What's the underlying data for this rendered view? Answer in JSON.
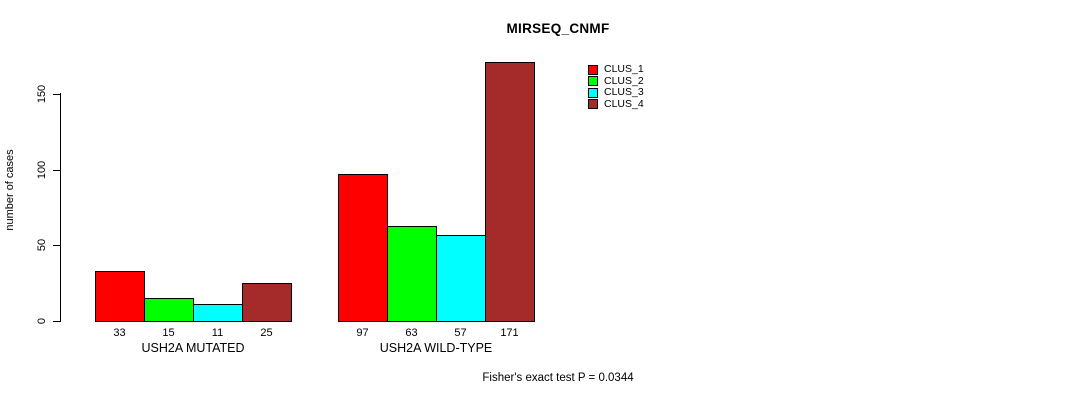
{
  "title": "MIRSEQ_CNMF",
  "y_axis": {
    "label": "number of cases"
  },
  "caption": "Fisher's exact test P = 0.0344",
  "chart_data": {
    "type": "bar",
    "title": "MIRSEQ_CNMF",
    "xlabel": "",
    "ylabel": "number of cases",
    "categories": [
      "USH2A MUTATED",
      "USH2A WILD-TYPE"
    ],
    "series": [
      {
        "name": "CLUS_1",
        "color": "#FF0000",
        "values": [
          33,
          97
        ]
      },
      {
        "name": "CLUS_2",
        "color": "#00FF00",
        "values": [
          15,
          63
        ]
      },
      {
        "name": "CLUS_3",
        "color": "#00FFFF",
        "values": [
          11,
          57
        ]
      },
      {
        "name": "CLUS_4",
        "color": "#A52A2A",
        "values": [
          25,
          171
        ]
      }
    ],
    "yticks": [
      0,
      50,
      100,
      150
    ],
    "ylim": [
      0,
      175
    ],
    "grid": false,
    "bar_value_labels": true,
    "legend_position": "top-right-inside",
    "annotation": "Fisher's exact test P = 0.0344"
  }
}
